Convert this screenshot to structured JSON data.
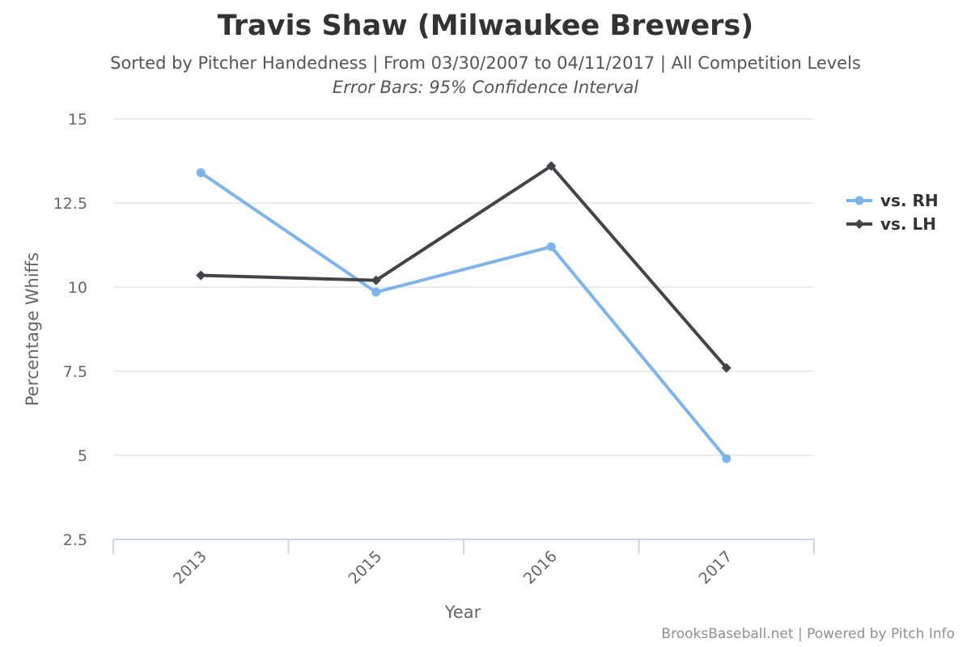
{
  "chart_data": {
    "type": "line",
    "title": "Travis Shaw (Milwaukee Brewers)",
    "subtitle": "Sorted by Pitcher Handedness | From 03/30/2007 to 04/11/2017 | All Competition Levels",
    "subtitle2": "Error Bars: 95% Confidence Interval",
    "xlabel": "Year",
    "ylabel": "Percentage Whiffs",
    "categories": [
      "2013",
      "2015",
      "2016",
      "2017"
    ],
    "yticks": [
      "2.5",
      "5",
      "7.5",
      "10",
      "12.5",
      "15"
    ],
    "ylim": [
      2.5,
      15
    ],
    "grid": true,
    "legend_position": "right",
    "series": [
      {
        "name": "vs. RH",
        "color": "#7cb5ec",
        "marker": "circle",
        "values": [
          13.4,
          9.85,
          11.2,
          4.9
        ]
      },
      {
        "name": "vs. LH",
        "color": "#434348",
        "marker": "diamond",
        "values": [
          10.35,
          10.2,
          13.6,
          7.6
        ]
      }
    ]
  },
  "credits": "BrooksBaseball.net | Powered by Pitch Info"
}
